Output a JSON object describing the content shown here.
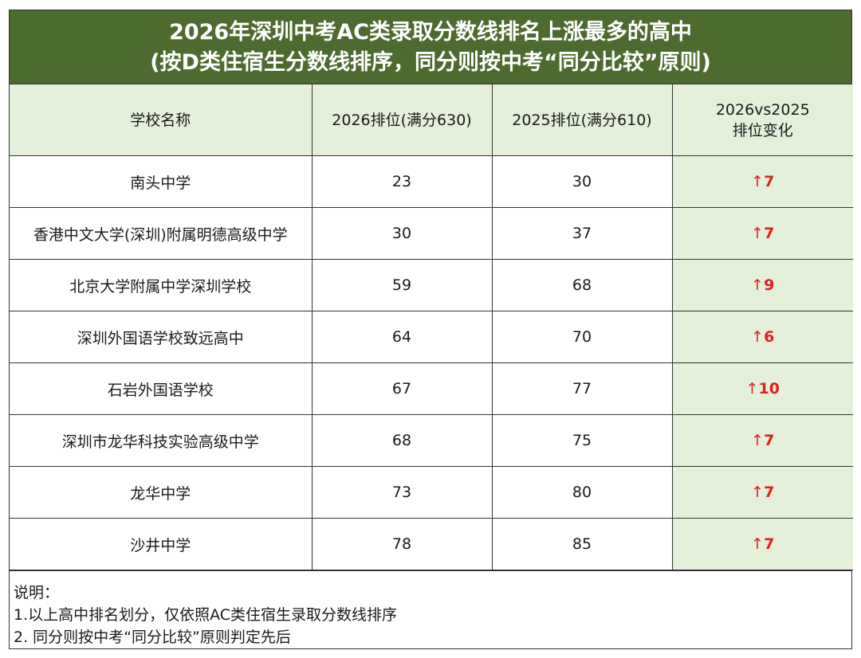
{
  "title": {
    "line1": "2026年深圳中考AC类录取分数线排名上涨最多的高中",
    "line2": "(按D类住宿生分数线排序，同分则按中考“同分比较”原则)"
  },
  "table": {
    "headers": {
      "school": "学校名称",
      "rank2026": "2026排位(满分630)",
      "rank2025": "2025排位(满分610)",
      "change_line1": "2026vs2025",
      "change_line2": "排位变化"
    },
    "rows": [
      {
        "school": "南头中学",
        "rank2026": "23",
        "rank2025": "30",
        "arrow": "↑",
        "change": "7"
      },
      {
        "school": "香港中文大学(深圳)附属明德高级中学",
        "rank2026": "30",
        "rank2025": "37",
        "arrow": "↑",
        "change": "7"
      },
      {
        "school": "北京大学附属中学深圳学校",
        "rank2026": "59",
        "rank2025": "68",
        "arrow": "↑",
        "change": "9"
      },
      {
        "school": "深圳外国语学校致远高中",
        "rank2026": "64",
        "rank2025": "70",
        "arrow": "↑",
        "change": "6"
      },
      {
        "school": "石岩外国语学校",
        "rank2026": "67",
        "rank2025": "77",
        "arrow": "↑",
        "change": "10"
      },
      {
        "school": "深圳市龙华科技实验高级中学",
        "rank2026": "68",
        "rank2025": "75",
        "arrow": "↑",
        "change": "7"
      },
      {
        "school": "龙华中学",
        "rank2026": "73",
        "rank2025": "80",
        "arrow": "↑",
        "change": "7"
      },
      {
        "school": "沙井中学",
        "rank2026": "78",
        "rank2025": "85",
        "arrow": "↑",
        "change": "7"
      }
    ]
  },
  "notes": {
    "heading": "说明：",
    "line1": "1.以上高中排名划分，仅依照AC类住宿生录取分数线排序",
    "line2": "2. 同分则按中考“同分比较”原则判定先后"
  },
  "colors": {
    "title_bg": "#4d6b2e",
    "header_bg": "#e4f0da",
    "change_text": "#e02020"
  }
}
